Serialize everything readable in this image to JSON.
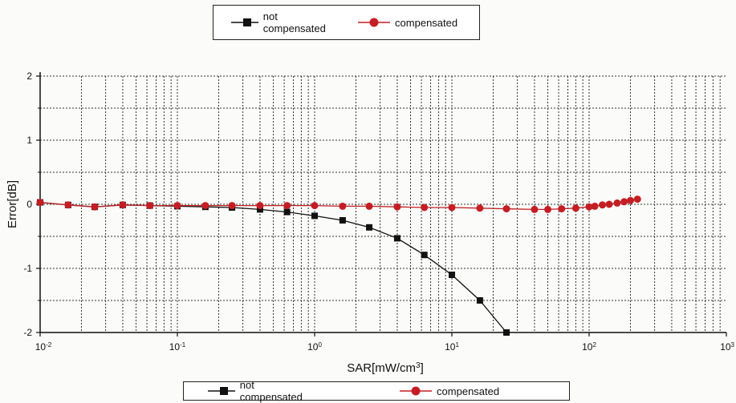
{
  "chart_data": {
    "type": "line",
    "title": "",
    "xlabel": "SAR[mW/cm",
    "xlabel_sup": "3",
    "xlabel_tail": "]",
    "ylabel": "Error[dB]",
    "xscale": "log",
    "xlim": [
      0.01,
      1000
    ],
    "ylim": [
      -2,
      2
    ],
    "grid": true,
    "legend_placement": "top-center and bottom",
    "x_ticks": [
      {
        "base": "10",
        "exp": "-2"
      },
      {
        "base": "10",
        "exp": "-1"
      },
      {
        "base": "10",
        "exp": "0"
      },
      {
        "base": "10",
        "exp": "1"
      },
      {
        "base": "10",
        "exp": "2"
      },
      {
        "base": "10",
        "exp": "3"
      }
    ],
    "y_ticks": [
      "2",
      "1",
      "0",
      "-1",
      "-2"
    ],
    "y_tick_values": [
      2,
      1,
      0,
      -1,
      -2
    ],
    "series": [
      {
        "name": "not compensated",
        "color": "#111111",
        "marker": "square",
        "x": [
          0.01,
          0.016,
          0.025,
          0.04,
          0.063,
          0.1,
          0.16,
          0.25,
          0.4,
          0.63,
          1.0,
          1.6,
          2.5,
          4.0,
          6.3,
          10,
          16,
          25
        ],
        "y": [
          0.03,
          -0.01,
          -0.04,
          -0.01,
          -0.02,
          -0.03,
          -0.04,
          -0.05,
          -0.08,
          -0.12,
          -0.18,
          -0.25,
          -0.36,
          -0.53,
          -0.79,
          -1.1,
          -1.5,
          -2.0
        ]
      },
      {
        "name": "compensated",
        "color": "#c41e24",
        "marker": "circle",
        "x": [
          0.01,
          0.016,
          0.025,
          0.04,
          0.063,
          0.1,
          0.16,
          0.25,
          0.4,
          0.63,
          1.0,
          1.6,
          2.5,
          4.0,
          6.3,
          10,
          16,
          25,
          40,
          50,
          63,
          80,
          100,
          110,
          125,
          140,
          160,
          180,
          200,
          225
        ],
        "y": [
          0.03,
          -0.01,
          -0.04,
          -0.01,
          -0.02,
          -0.02,
          -0.02,
          -0.02,
          -0.02,
          -0.02,
          -0.02,
          -0.03,
          -0.03,
          -0.04,
          -0.05,
          -0.05,
          -0.06,
          -0.07,
          -0.08,
          -0.08,
          -0.07,
          -0.06,
          -0.04,
          -0.03,
          -0.01,
          0.0,
          0.02,
          0.04,
          0.06,
          0.08
        ]
      }
    ]
  },
  "legend": {
    "not_compensated": "not compensated",
    "compensated": "compensated"
  }
}
